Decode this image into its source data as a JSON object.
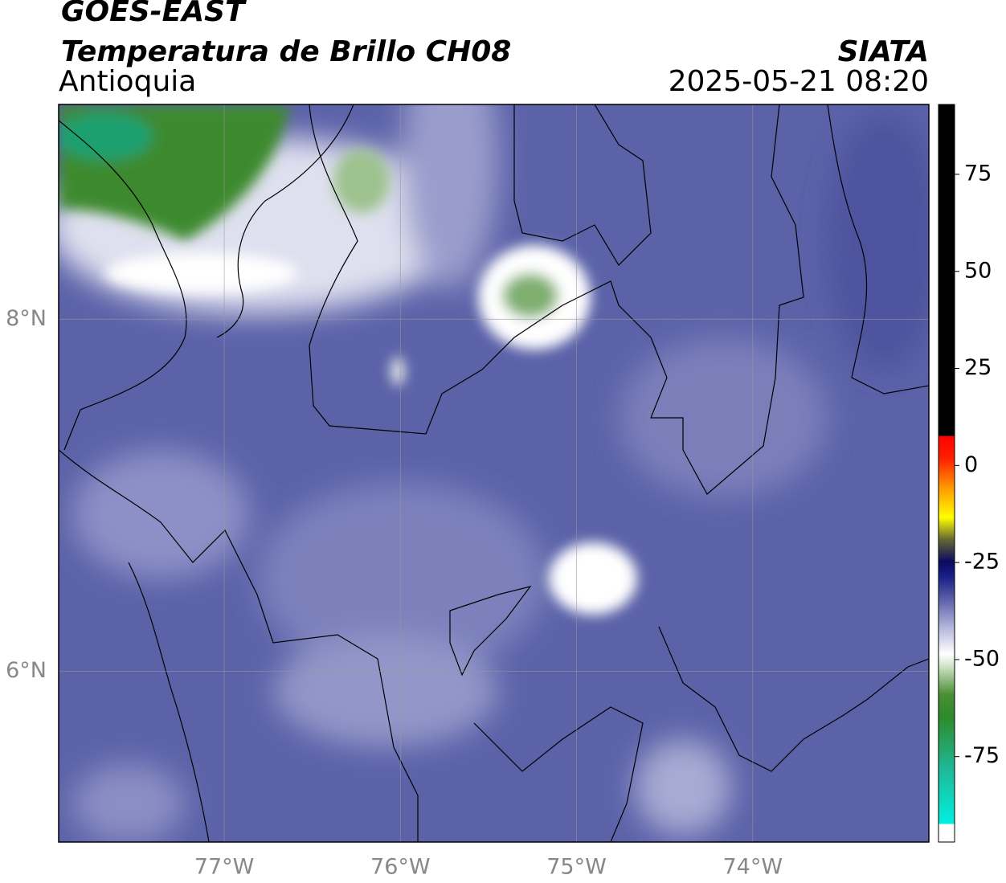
{
  "header": {
    "title": "GOES-EAST",
    "subtitle": "Temperatura de Brillo CH08",
    "region": "Antioquia",
    "source": "SIATA",
    "datetime": "2025-05-21 08:20"
  },
  "map": {
    "xlim": [
      -77.94,
      -73.0
    ],
    "ylim": [
      5.03,
      9.22
    ],
    "xticks": [
      {
        "value": -77,
        "label": "77°W"
      },
      {
        "value": -76,
        "label": "76°W"
      },
      {
        "value": -75,
        "label": "75°W"
      },
      {
        "value": -74,
        "label": "74°W"
      }
    ],
    "yticks": [
      {
        "value": 8,
        "label": "8°N"
      },
      {
        "value": 6,
        "label": "6°N"
      }
    ],
    "grid": true
  },
  "colorbar": {
    "clim": [
      -97,
      93
    ],
    "ticks": [
      75,
      50,
      25,
      0,
      -25,
      -50,
      -75
    ]
  }
}
